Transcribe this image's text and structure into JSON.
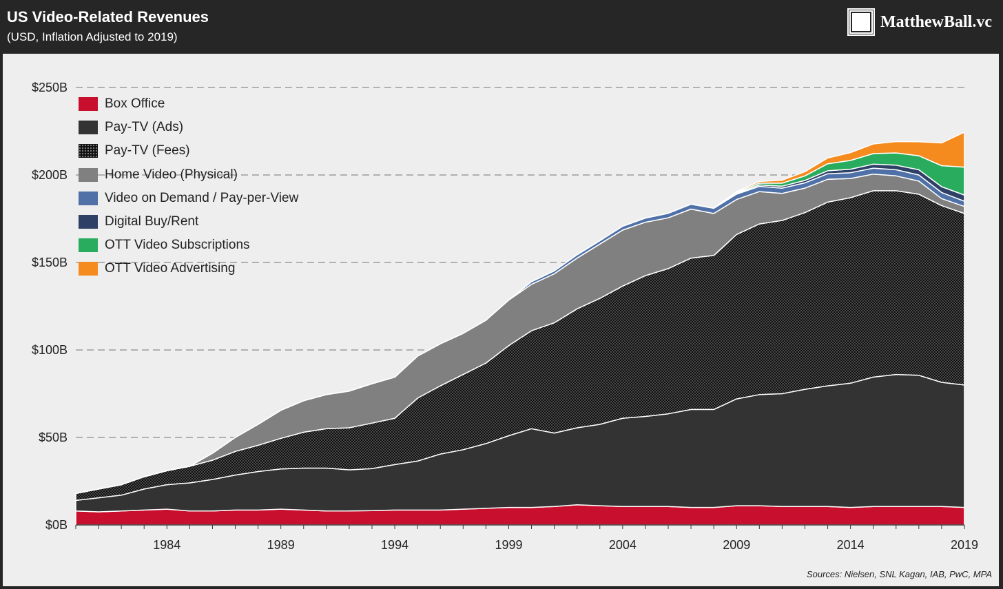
{
  "header": {
    "title": "US Video-Related Revenues",
    "subtitle": "(USD, Inflation Adjusted to 2019)",
    "brand": "MatthewBall.vc"
  },
  "source": "Sources: Nielsen, SNL Kagan, IAB, PwC, MPA",
  "chart_data": {
    "type": "area",
    "stacked": true,
    "x": [
      1980,
      1981,
      1982,
      1983,
      1984,
      1985,
      1986,
      1987,
      1988,
      1989,
      1990,
      1991,
      1992,
      1993,
      1994,
      1995,
      1996,
      1997,
      1998,
      1999,
      2000,
      2001,
      2002,
      2003,
      2004,
      2005,
      2006,
      2007,
      2008,
      2009,
      2010,
      2011,
      2012,
      2013,
      2014,
      2015,
      2016,
      2017,
      2018,
      2019
    ],
    "xticks": [
      1984,
      1989,
      1994,
      1999,
      2004,
      2009,
      2014,
      2019
    ],
    "ylim": [
      0,
      250
    ],
    "yticks": [
      0,
      50,
      100,
      150,
      200,
      250
    ],
    "ytick_labels": [
      "$0B",
      "$50B",
      "$100B",
      "$150B",
      "$200B",
      "$250B"
    ],
    "grid": "horizontal-dashed",
    "legend_position": "top-left",
    "series": [
      {
        "name": "Box Office",
        "color": "#c8102e",
        "pattern": "solid",
        "values": [
          8,
          7.5,
          8,
          8.5,
          9,
          8,
          8,
          8.5,
          8.5,
          9,
          8.5,
          8,
          8,
          8.2,
          8.5,
          8.5,
          8.5,
          9,
          9.5,
          10,
          10,
          10.5,
          11.5,
          11,
          10.5,
          10.5,
          10.5,
          10,
          10,
          11,
          11,
          10.5,
          10.5,
          10.5,
          10,
          10.5,
          10.5,
          10.5,
          10.5,
          10
        ]
      },
      {
        "name": "Pay-TV (Ads)",
        "color": "#333333",
        "pattern": "solid",
        "values": [
          6,
          8,
          9,
          12,
          14,
          16,
          18,
          20,
          22,
          23,
          24,
          24.5,
          23.5,
          24,
          26,
          28,
          32,
          34,
          37,
          41,
          45,
          42,
          44,
          46.5,
          50.5,
          51.5,
          53,
          56,
          56,
          61,
          63.5,
          64.5,
          67,
          69,
          71,
          74,
          75.5,
          75,
          71,
          70
        ]
      },
      {
        "name": "Pay-TV (Fees)",
        "color": "#111111",
        "pattern": "dots",
        "values": [
          4,
          5,
          6,
          7,
          8,
          9.5,
          11,
          13.5,
          15,
          17.5,
          20.5,
          22.5,
          24,
          26,
          26.5,
          36,
          39,
          43,
          46,
          51.5,
          56,
          63,
          68,
          72,
          75.5,
          80.5,
          83,
          86.5,
          88,
          94,
          97.5,
          99,
          101,
          105,
          106,
          106.5,
          105,
          103.5,
          101,
          98
        ]
      },
      {
        "name": "Home Video (Physical)",
        "color": "#808080",
        "pattern": "solid",
        "values": [
          0,
          0,
          0,
          0,
          0,
          0,
          4,
          8,
          12,
          16,
          18,
          19.5,
          21,
          22.5,
          23.5,
          24,
          24,
          23.5,
          24.5,
          26,
          26.5,
          28,
          29,
          31,
          32,
          30.5,
          29,
          28,
          24,
          20,
          18.5,
          15.5,
          14,
          13,
          11,
          9.5,
          8.5,
          7.5,
          4,
          4
        ]
      },
      {
        "name": "Video on Demand / Pay-per-View",
        "color": "#4f71a8",
        "pattern": "solid",
        "values": [
          0,
          0,
          0,
          0,
          0,
          0,
          0,
          0,
          0,
          0,
          0,
          0,
          0,
          0,
          0,
          0,
          0,
          0,
          0,
          0,
          1.5,
          1.7,
          1.9,
          2,
          2.2,
          2.4,
          2.6,
          2.8,
          3,
          3,
          3,
          3,
          3,
          3.2,
          3.3,
          3.4,
          3.5,
          3.5,
          3.5,
          3
        ]
      },
      {
        "name": "Digital Buy/Rent",
        "color": "#2f4066",
        "pattern": "solid",
        "values": [
          0,
          0,
          0,
          0,
          0,
          0,
          0,
          0,
          0,
          0,
          0,
          0,
          0,
          0,
          0,
          0,
          0,
          0,
          0,
          0,
          0,
          0,
          0,
          0,
          0,
          0,
          0,
          0,
          0,
          0.5,
          0.8,
          1.1,
          1.4,
          1.7,
          2,
          2.3,
          2.6,
          3,
          3.3,
          3.5
        ]
      },
      {
        "name": "OTT Video Subscriptions",
        "color": "#2aac5e",
        "pattern": "solid",
        "values": [
          0,
          0,
          0,
          0,
          0,
          0,
          0,
          0,
          0,
          0,
          0,
          0,
          0,
          0,
          0,
          0,
          0,
          0,
          0,
          0,
          0,
          0,
          0,
          0,
          0,
          0,
          0,
          0,
          0,
          0.5,
          1,
          1.7,
          2.6,
          4,
          5,
          6,
          7,
          8,
          12,
          16
        ]
      },
      {
        "name": "OTT Video Advertising",
        "color": "#f58b1f",
        "pattern": "solid",
        "values": [
          0,
          0,
          0,
          0,
          0,
          0,
          0,
          0,
          0,
          0,
          0,
          0,
          0,
          0,
          0,
          0,
          0,
          0,
          0,
          0,
          0,
          0,
          0,
          0,
          0,
          0,
          0,
          0,
          0,
          0.5,
          1,
          1.7,
          2.4,
          3.3,
          4.5,
          5.5,
          6.5,
          8,
          13,
          20
        ]
      }
    ]
  }
}
